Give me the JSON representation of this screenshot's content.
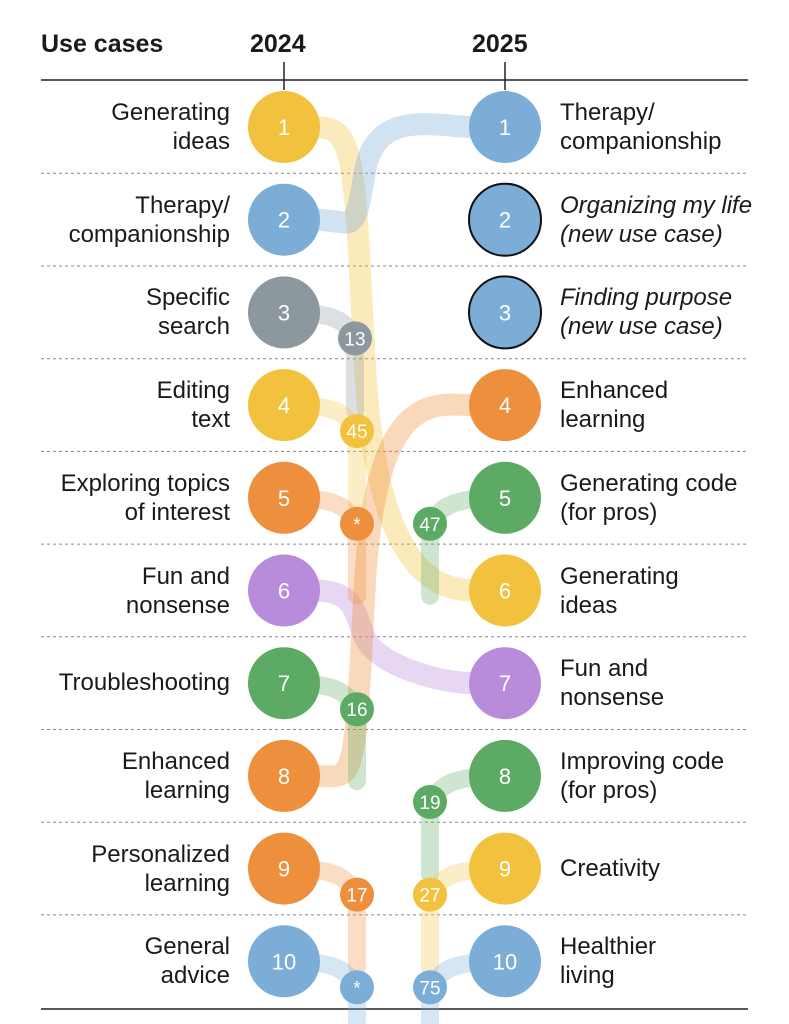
{
  "chart_data": {
    "type": "slope",
    "header": {
      "use_cases": "Use cases",
      "year_a": "2024",
      "year_b": "2025"
    },
    "colors": {
      "yellow": "#F2C23E",
      "blue": "#7BADD6",
      "gray": "#8C979E",
      "orange": "#EE8F3D",
      "green": "#5DAA64",
      "purple": "#B98BDB"
    },
    "ranks_2024": [
      {
        "rank": "1",
        "label_1": "Generating",
        "label_2": "ideas",
        "color": "yellow"
      },
      {
        "rank": "2",
        "label_1": "Therapy/",
        "label_2": "companionship",
        "color": "blue"
      },
      {
        "rank": "3",
        "label_1": "Specific",
        "label_2": "search",
        "color": "gray"
      },
      {
        "rank": "4",
        "label_1": "Editing",
        "label_2": "text",
        "color": "yellow"
      },
      {
        "rank": "5",
        "label_1": "Exploring topics",
        "label_2": "of interest",
        "color": "orange"
      },
      {
        "rank": "6",
        "label_1": "Fun and",
        "label_2": "nonsense",
        "color": "purple"
      },
      {
        "rank": "7",
        "label_1": "Troubleshooting",
        "label_2": "",
        "color": "green"
      },
      {
        "rank": "8",
        "label_1": "Enhanced",
        "label_2": "learning",
        "color": "orange"
      },
      {
        "rank": "9",
        "label_1": "Personalized",
        "label_2": "learning",
        "color": "orange"
      },
      {
        "rank": "10",
        "label_1": "General",
        "label_2": "advice",
        "color": "blue"
      }
    ],
    "ranks_2025": [
      {
        "rank": "1",
        "label_1": "Therapy/",
        "label_2": "companionship",
        "color": "blue",
        "new": false
      },
      {
        "rank": "2",
        "label_1": "Organizing my life",
        "label_2": "(new use case)",
        "color": "blue",
        "new": true
      },
      {
        "rank": "3",
        "label_1": "Finding purpose",
        "label_2": "(new use case)",
        "color": "blue",
        "new": true
      },
      {
        "rank": "4",
        "label_1": "Enhanced",
        "label_2": "learning",
        "color": "orange",
        "new": false
      },
      {
        "rank": "5",
        "label_1": "Generating code",
        "label_2": "(for pros)",
        "color": "green",
        "new": false
      },
      {
        "rank": "6",
        "label_1": "Generating",
        "label_2": "ideas",
        "color": "yellow",
        "new": false
      },
      {
        "rank": "7",
        "label_1": "Fun and",
        "label_2": "nonsense",
        "color": "purple",
        "new": false
      },
      {
        "rank": "8",
        "label_1": "Improving code",
        "label_2": "(for pros)",
        "color": "green",
        "new": false
      },
      {
        "rank": "9",
        "label_1": "Creativity",
        "label_2": "",
        "color": "yellow",
        "new": false
      },
      {
        "rank": "10",
        "label_1": "Healthier",
        "label_2": "living",
        "color": "blue",
        "new": false
      }
    ],
    "moves_within": [
      {
        "from_2024": 1,
        "to_2025": 6,
        "color": "yellow"
      },
      {
        "from_2024": 2,
        "to_2025": 1,
        "color": "blue"
      },
      {
        "from_2024": 6,
        "to_2025": 7,
        "color": "purple"
      },
      {
        "from_2024": 8,
        "to_2025": 4,
        "color": "orange"
      }
    ],
    "dropped_2024": [
      {
        "from_2024": 3,
        "rank_2025": "13",
        "color": "gray"
      },
      {
        "from_2024": 4,
        "rank_2025": "45",
        "color": "yellow"
      },
      {
        "from_2024": 5,
        "rank_2025": "*",
        "color": "orange"
      },
      {
        "from_2024": 7,
        "rank_2025": "16",
        "color": "green"
      },
      {
        "from_2024": 9,
        "rank_2025": "17",
        "color": "orange"
      },
      {
        "from_2024": 10,
        "rank_2025": "*",
        "color": "blue"
      }
    ],
    "entered_2025": [
      {
        "to_2025": 5,
        "rank_2024": "47",
        "color": "green"
      },
      {
        "to_2025": 8,
        "rank_2024": "19",
        "color": "green"
      },
      {
        "to_2025": 9,
        "rank_2024": "27",
        "color": "yellow"
      },
      {
        "to_2025": 10,
        "rank_2024": "75",
        "color": "blue"
      }
    ]
  }
}
